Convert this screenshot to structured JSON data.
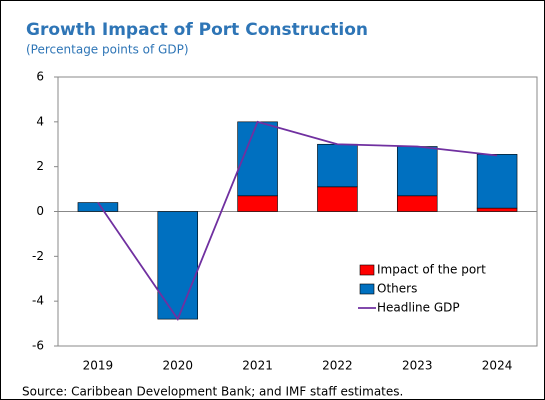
{
  "chart_data": {
    "type": "stacked-bar-line",
    "title": "Growth Impact of Port Construction",
    "subtitle": "(Percentage points of GDP)",
    "source": "Source: Caribbean Development Bank; and IMF staff estimates.",
    "categories": [
      "2019",
      "2020",
      "2021",
      "2022",
      "2023",
      "2024"
    ],
    "series": [
      {
        "name": "Impact of the port",
        "color": "#ff0000",
        "values": [
          0,
          0,
          0.7,
          1.1,
          0.7,
          0.15
        ]
      },
      {
        "name": "Others",
        "color": "#0070c0",
        "values": [
          0.4,
          -4.8,
          3.3,
          1.9,
          2.2,
          2.4
        ]
      },
      {
        "name": "Headline GDP",
        "color": "#7030a0",
        "kind": "line",
        "values": [
          0.4,
          -4.8,
          4.0,
          3.0,
          2.9,
          2.5
        ]
      }
    ],
    "ylim": [
      -6,
      6
    ],
    "yticks": [
      -6,
      -4,
      -2,
      0,
      2,
      4,
      6
    ]
  }
}
